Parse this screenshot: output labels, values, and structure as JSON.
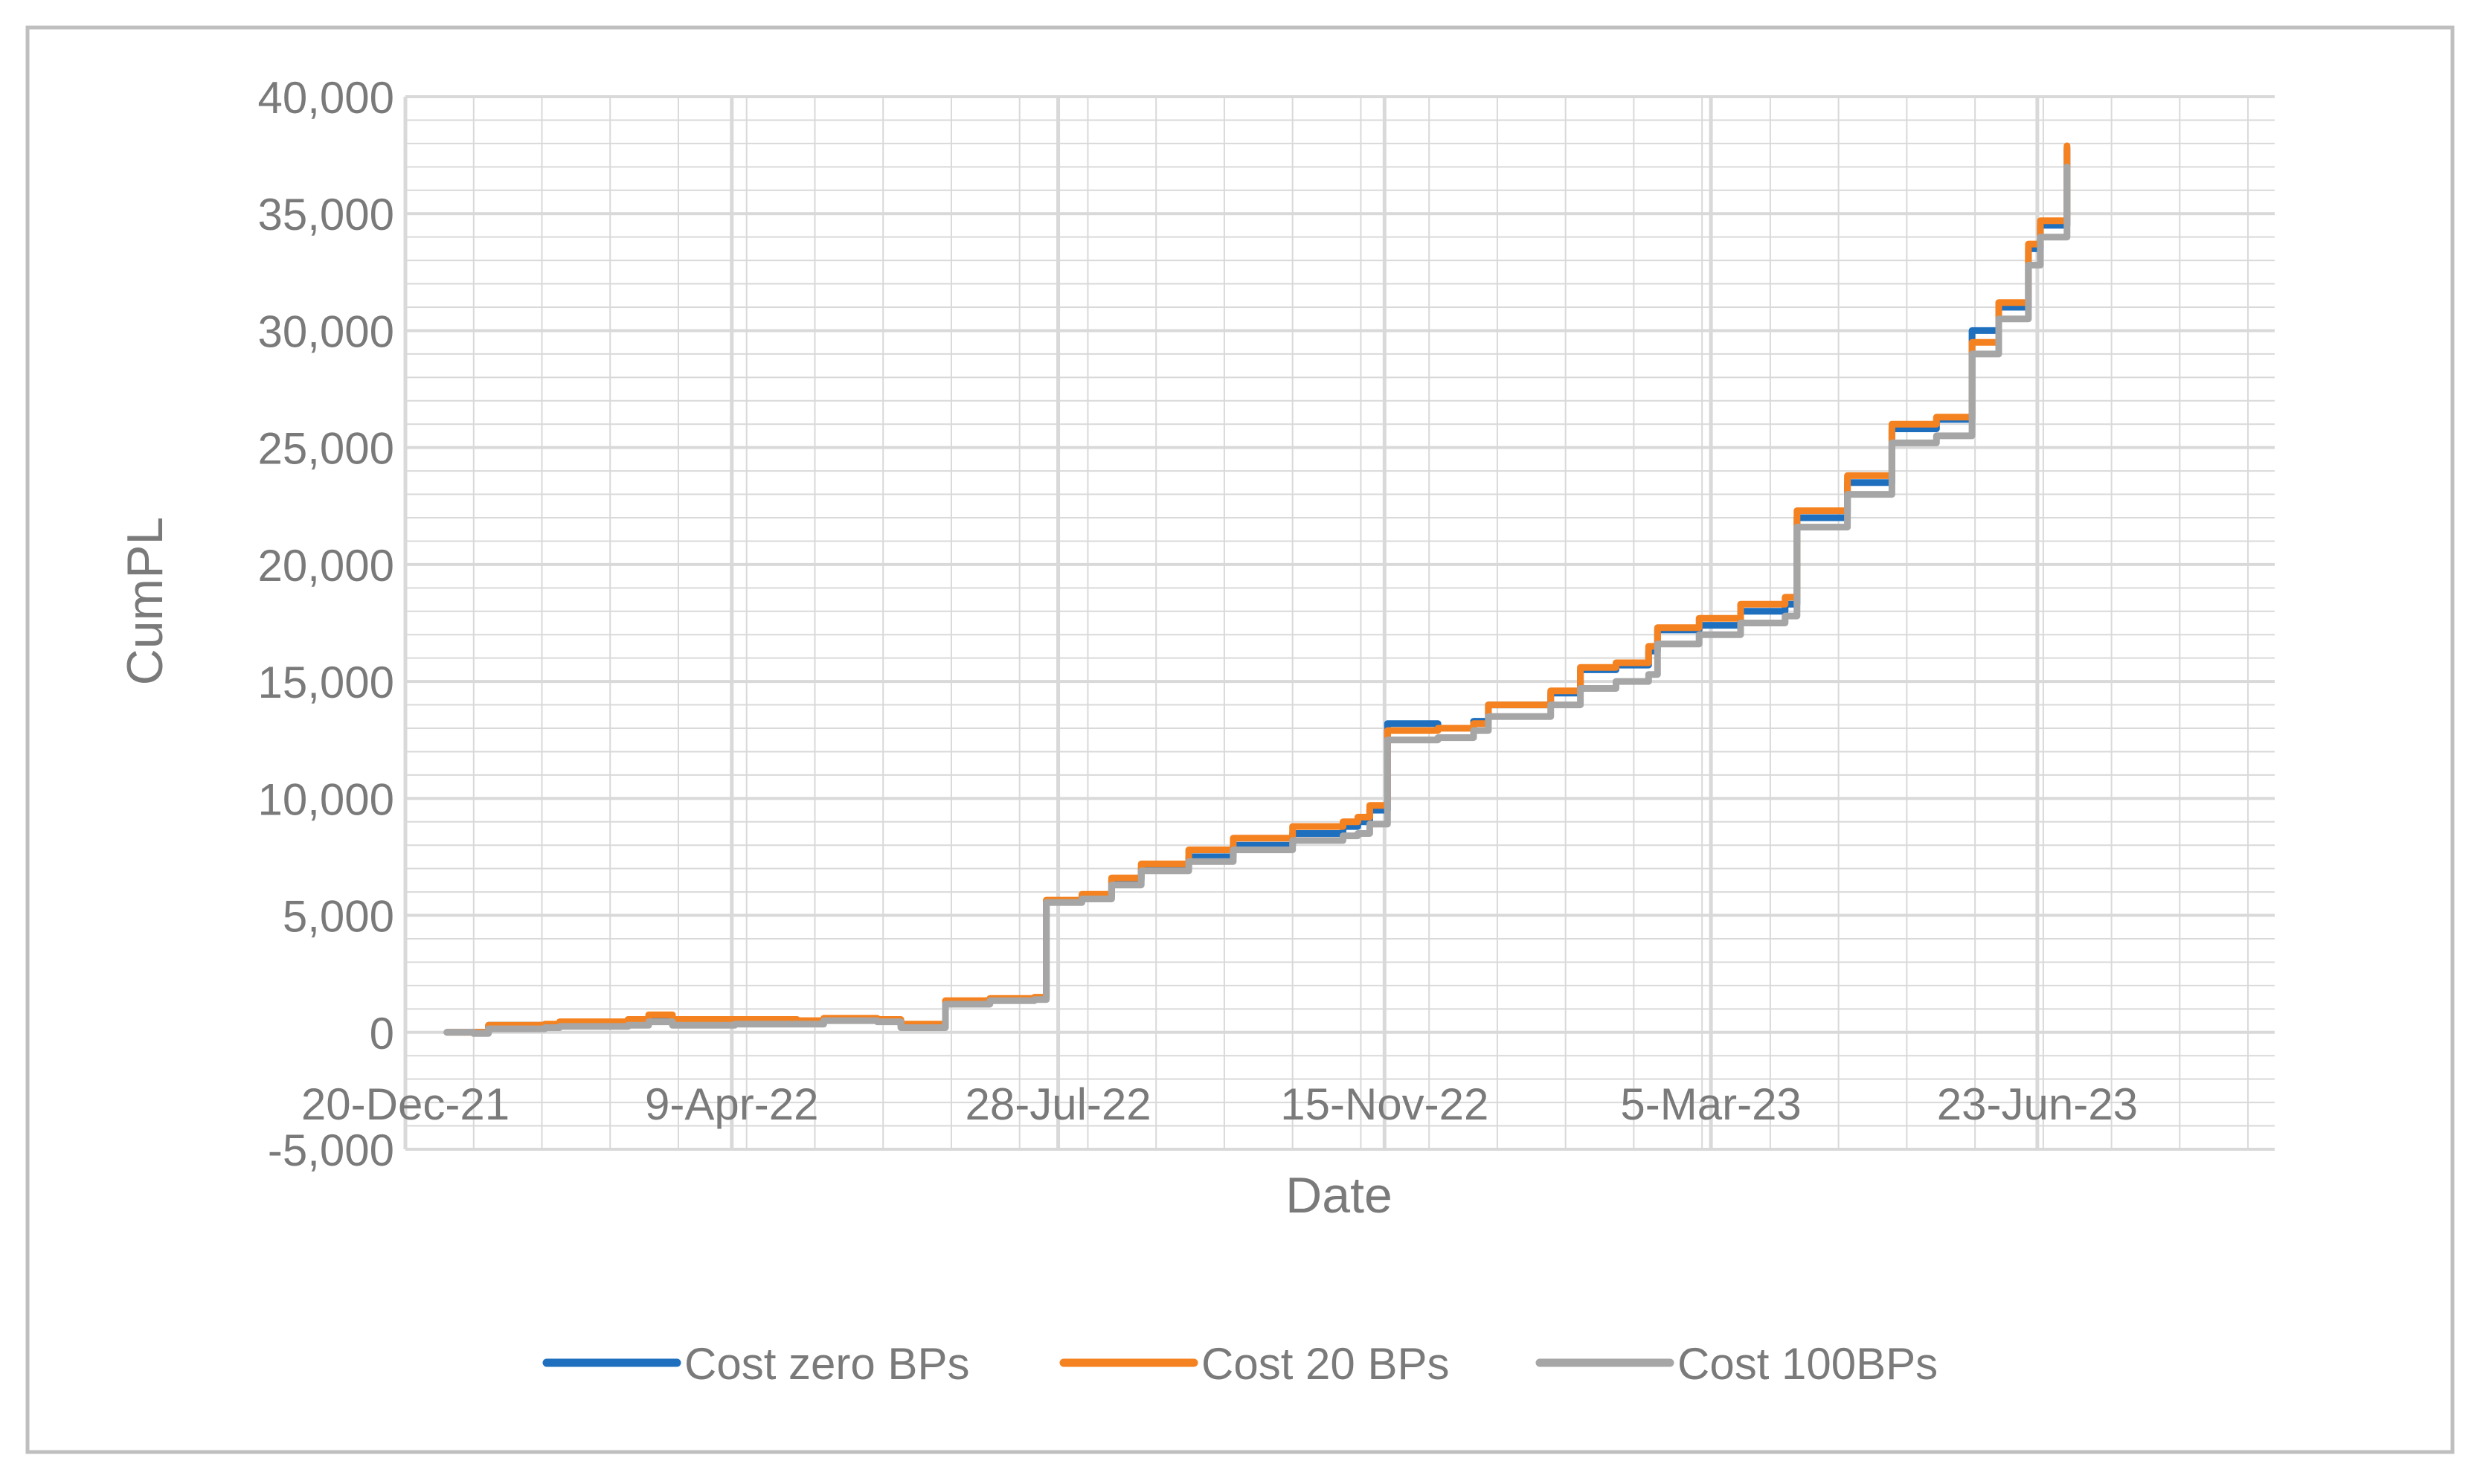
{
  "chart_data": {
    "type": "line",
    "title": "",
    "xlabel": "Date",
    "ylabel": "CumPL",
    "ylim": [
      -5000,
      40000
    ],
    "yticks": [
      -5000,
      0,
      5000,
      10000,
      15000,
      20000,
      25000,
      30000,
      35000,
      40000
    ],
    "ytick_labels": [
      "-5,000",
      "0",
      "5,000",
      "10,000",
      "15,000",
      "20,000",
      "25,000",
      "30,000",
      "35,000",
      "40,000"
    ],
    "xlim": [
      "2021-12-20",
      "2023-09-11"
    ],
    "xticks": [
      "2021-12-20",
      "2022-04-09",
      "2022-07-28",
      "2022-11-15",
      "2023-03-05",
      "2023-06-23"
    ],
    "xtick_labels": [
      "20-Dec-21",
      "9-Apr-22",
      "28-Jul-22",
      "15-Nov-22",
      "5-Mar-23",
      "23-Jun-23"
    ],
    "grid": true,
    "legend_position": "bottom",
    "colors": {
      "gridline": "#d9d9d9",
      "axis_text": "#7a7a7a",
      "frame": "#bfbfbf"
    },
    "series": [
      {
        "name": "Cost zero BPs",
        "color": "#1f6fbf",
        "points": [
          [
            "2022-01-03",
            0
          ],
          [
            "2022-01-12",
            0
          ],
          [
            "2022-01-17",
            300
          ],
          [
            "2022-02-05",
            300
          ],
          [
            "2022-02-10",
            400
          ],
          [
            "2022-03-05",
            500
          ],
          [
            "2022-03-12",
            700
          ],
          [
            "2022-03-20",
            500
          ],
          [
            "2022-04-10",
            500
          ],
          [
            "2022-05-01",
            450
          ],
          [
            "2022-05-10",
            550
          ],
          [
            "2022-05-28",
            500
          ],
          [
            "2022-06-05",
            300
          ],
          [
            "2022-06-15",
            300
          ],
          [
            "2022-06-20",
            1300
          ],
          [
            "2022-07-05",
            1400
          ],
          [
            "2022-07-20",
            1450
          ],
          [
            "2022-07-24",
            5600
          ],
          [
            "2022-08-05",
            5800
          ],
          [
            "2022-08-15",
            6500
          ],
          [
            "2022-08-25",
            7000
          ],
          [
            "2022-09-10",
            7500
          ],
          [
            "2022-09-25",
            8000
          ],
          [
            "2022-10-15",
            8500
          ],
          [
            "2022-11-01",
            8800
          ],
          [
            "2022-11-06",
            9000
          ],
          [
            "2022-11-10",
            9500
          ],
          [
            "2022-11-16",
            13200
          ],
          [
            "2022-12-03",
            13000
          ],
          [
            "2022-12-15",
            13300
          ],
          [
            "2022-12-20",
            14000
          ],
          [
            "2023-01-10",
            14500
          ],
          [
            "2023-01-20",
            15500
          ],
          [
            "2023-02-01",
            15700
          ],
          [
            "2023-02-12",
            16300
          ],
          [
            "2023-02-15",
            17200
          ],
          [
            "2023-03-01",
            17400
          ],
          [
            "2023-03-15",
            18000
          ],
          [
            "2023-03-30",
            18300
          ],
          [
            "2023-04-03",
            22000
          ],
          [
            "2023-04-20",
            23500
          ],
          [
            "2023-05-05",
            25800
          ],
          [
            "2023-05-20",
            26200
          ],
          [
            "2023-06-01",
            30000
          ],
          [
            "2023-06-10",
            31000
          ],
          [
            "2023-06-20",
            33500
          ],
          [
            "2023-06-24",
            34500
          ],
          [
            "2023-07-03",
            37800
          ]
        ]
      },
      {
        "name": "Cost 20 BPs",
        "color": "#f58220",
        "points": [
          [
            "2022-01-03",
            0
          ],
          [
            "2022-01-12",
            0
          ],
          [
            "2022-01-17",
            300
          ],
          [
            "2022-02-05",
            350
          ],
          [
            "2022-02-10",
            450
          ],
          [
            "2022-03-05",
            550
          ],
          [
            "2022-03-12",
            750
          ],
          [
            "2022-03-20",
            550
          ],
          [
            "2022-04-10",
            550
          ],
          [
            "2022-05-01",
            500
          ],
          [
            "2022-05-10",
            600
          ],
          [
            "2022-05-28",
            550
          ],
          [
            "2022-06-05",
            350
          ],
          [
            "2022-06-15",
            350
          ],
          [
            "2022-06-20",
            1350
          ],
          [
            "2022-07-05",
            1450
          ],
          [
            "2022-07-20",
            1500
          ],
          [
            "2022-07-24",
            5650
          ],
          [
            "2022-08-05",
            5900
          ],
          [
            "2022-08-15",
            6600
          ],
          [
            "2022-08-25",
            7200
          ],
          [
            "2022-09-10",
            7800
          ],
          [
            "2022-09-25",
            8300
          ],
          [
            "2022-10-15",
            8800
          ],
          [
            "2022-11-01",
            9000
          ],
          [
            "2022-11-06",
            9200
          ],
          [
            "2022-11-10",
            9700
          ],
          [
            "2022-11-16",
            12900
          ],
          [
            "2022-12-03",
            13000
          ],
          [
            "2022-12-15",
            13200
          ],
          [
            "2022-12-20",
            14000
          ],
          [
            "2023-01-10",
            14600
          ],
          [
            "2023-01-20",
            15600
          ],
          [
            "2023-02-01",
            15800
          ],
          [
            "2023-02-12",
            16500
          ],
          [
            "2023-02-15",
            17300
          ],
          [
            "2023-03-01",
            17700
          ],
          [
            "2023-03-15",
            18300
          ],
          [
            "2023-03-30",
            18600
          ],
          [
            "2023-04-03",
            22300
          ],
          [
            "2023-04-20",
            23800
          ],
          [
            "2023-05-05",
            26000
          ],
          [
            "2023-05-20",
            26300
          ],
          [
            "2023-06-01",
            29500
          ],
          [
            "2023-06-10",
            31200
          ],
          [
            "2023-06-20",
            33700
          ],
          [
            "2023-06-24",
            34700
          ],
          [
            "2023-07-03",
            37900
          ]
        ]
      },
      {
        "name": "Cost 100BPs",
        "color": "#a6a6a6",
        "points": [
          [
            "2022-01-03",
            0
          ],
          [
            "2022-01-12",
            -50
          ],
          [
            "2022-01-17",
            150
          ],
          [
            "2022-02-05",
            200
          ],
          [
            "2022-02-10",
            250
          ],
          [
            "2022-03-05",
            300
          ],
          [
            "2022-03-12",
            450
          ],
          [
            "2022-03-20",
            300
          ],
          [
            "2022-04-10",
            350
          ],
          [
            "2022-05-01",
            350
          ],
          [
            "2022-05-10",
            500
          ],
          [
            "2022-05-28",
            450
          ],
          [
            "2022-06-05",
            200
          ],
          [
            "2022-06-15",
            200
          ],
          [
            "2022-06-20",
            1200
          ],
          [
            "2022-07-05",
            1350
          ],
          [
            "2022-07-20",
            1400
          ],
          [
            "2022-07-24",
            5550
          ],
          [
            "2022-08-05",
            5700
          ],
          [
            "2022-08-15",
            6300
          ],
          [
            "2022-08-25",
            6900
          ],
          [
            "2022-09-10",
            7300
          ],
          [
            "2022-09-25",
            7800
          ],
          [
            "2022-10-15",
            8200
          ],
          [
            "2022-11-01",
            8400
          ],
          [
            "2022-11-06",
            8500
          ],
          [
            "2022-11-10",
            8900
          ],
          [
            "2022-11-16",
            12500
          ],
          [
            "2022-12-03",
            12600
          ],
          [
            "2022-12-15",
            12900
          ],
          [
            "2022-12-20",
            13500
          ],
          [
            "2023-01-10",
            14000
          ],
          [
            "2023-01-20",
            14700
          ],
          [
            "2023-02-01",
            15000
          ],
          [
            "2023-02-12",
            15300
          ],
          [
            "2023-02-15",
            16600
          ],
          [
            "2023-03-01",
            17000
          ],
          [
            "2023-03-15",
            17500
          ],
          [
            "2023-03-30",
            17800
          ],
          [
            "2023-04-03",
            21600
          ],
          [
            "2023-04-20",
            23000
          ],
          [
            "2023-05-05",
            25200
          ],
          [
            "2023-05-20",
            25500
          ],
          [
            "2023-06-01",
            29000
          ],
          [
            "2023-06-10",
            30500
          ],
          [
            "2023-06-20",
            32800
          ],
          [
            "2023-06-24",
            34000
          ],
          [
            "2023-07-03",
            37000
          ]
        ]
      }
    ]
  }
}
